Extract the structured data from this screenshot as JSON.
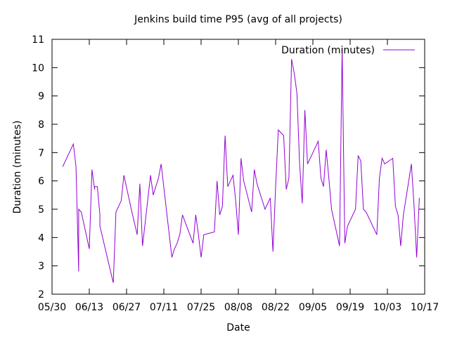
{
  "chart_data": {
    "type": "line",
    "title": "Jenkins build time P95 (avg of all projects)",
    "xlabel": "Date",
    "ylabel": "Duration (minutes)",
    "xlim": [
      "2020-05-30",
      "2020-10-17"
    ],
    "ylim": [
      2,
      11
    ],
    "x_ticks": [
      "05/30",
      "06/13",
      "06/27",
      "07/11",
      "07/25",
      "08/08",
      "08/22",
      "09/05",
      "09/19",
      "10/03",
      "10/17"
    ],
    "y_ticks": [
      2,
      3,
      4,
      5,
      6,
      7,
      8,
      9,
      10,
      11
    ],
    "grid": false,
    "legend": {
      "position": "top-right",
      "entries": [
        "Duration (minutes)"
      ]
    },
    "colors": {
      "series": "#9400d3",
      "axis": "#000000",
      "background": "#ffffff"
    },
    "series": [
      {
        "name": "Duration (minutes)",
        "x": [
          "2020-06-03",
          "2020-06-07",
          "2020-06-08",
          "2020-06-09",
          "2020-06-09",
          "2020-06-10",
          "2020-06-13",
          "2020-06-14",
          "2020-06-15",
          "2020-06-15",
          "2020-06-16",
          "2020-06-17",
          "2020-06-17",
          "2020-06-18",
          "2020-06-22",
          "2020-06-23",
          "2020-06-25",
          "2020-06-26",
          "2020-06-29",
          "2020-06-30",
          "2020-07-01",
          "2020-07-02",
          "2020-07-03",
          "2020-07-06",
          "2020-07-07",
          "2020-07-08",
          "2020-07-09",
          "2020-07-10",
          "2020-07-14",
          "2020-07-15",
          "2020-07-16",
          "2020-07-17",
          "2020-07-18",
          "2020-07-22",
          "2020-07-23",
          "2020-07-24",
          "2020-07-25",
          "2020-07-26",
          "2020-07-30",
          "2020-07-31",
          "2020-08-01",
          "2020-08-02",
          "2020-08-03",
          "2020-08-04",
          "2020-08-06",
          "2020-08-07",
          "2020-08-08",
          "2020-08-09",
          "2020-08-10",
          "2020-08-13",
          "2020-08-14",
          "2020-08-15",
          "2020-08-17",
          "2020-08-18",
          "2020-08-20",
          "2020-08-21",
          "2020-08-22",
          "2020-08-23",
          "2020-08-25",
          "2020-08-26",
          "2020-08-27",
          "2020-08-28",
          "2020-08-29",
          "2020-08-30",
          "2020-08-31",
          "2020-09-01",
          "2020-09-02",
          "2020-09-03",
          "2020-09-04",
          "2020-09-07",
          "2020-09-08",
          "2020-09-09",
          "2020-09-10",
          "2020-09-11",
          "2020-09-12",
          "2020-09-15",
          "2020-09-16",
          "2020-09-17",
          "2020-09-18",
          "2020-09-21",
          "2020-09-22",
          "2020-09-23",
          "2020-09-24",
          "2020-09-25",
          "2020-09-29",
          "2020-09-30",
          "2020-10-01",
          "2020-10-02",
          "2020-10-05",
          "2020-10-06",
          "2020-10-07",
          "2020-10-08",
          "2020-10-09",
          "2020-10-12",
          "2020-10-13",
          "2020-10-14",
          "2020-10-15"
        ],
        "y": [
          6.5,
          7.3,
          6.5,
          2.8,
          5.0,
          4.9,
          3.6,
          6.4,
          5.7,
          5.8,
          5.8,
          4.8,
          4.4,
          4.0,
          2.4,
          4.9,
          5.3,
          6.2,
          4.9,
          4.5,
          4.1,
          5.9,
          3.7,
          6.2,
          5.5,
          5.8,
          6.1,
          6.6,
          3.3,
          3.6,
          3.8,
          4.1,
          4.8,
          3.8,
          4.8,
          4.1,
          3.3,
          4.1,
          4.2,
          6.0,
          4.8,
          5.1,
          7.6,
          5.8,
          6.2,
          5.3,
          4.1,
          6.8,
          6.0,
          4.9,
          6.4,
          5.9,
          5.3,
          5.0,
          5.4,
          3.5,
          5.8,
          7.8,
          7.6,
          5.7,
          6.1,
          10.3,
          9.8,
          9.1,
          6.6,
          5.2,
          8.5,
          6.6,
          6.8,
          7.4,
          6.1,
          5.8,
          7.1,
          6.1,
          5.0,
          3.7,
          10.7,
          3.8,
          4.4,
          5.0,
          6.9,
          6.7,
          5.0,
          4.9,
          4.1,
          6.1,
          6.8,
          6.6,
          6.8,
          5.1,
          4.8,
          3.7,
          4.8,
          6.6,
          5.1,
          3.3,
          5.4
        ]
      }
    ]
  }
}
